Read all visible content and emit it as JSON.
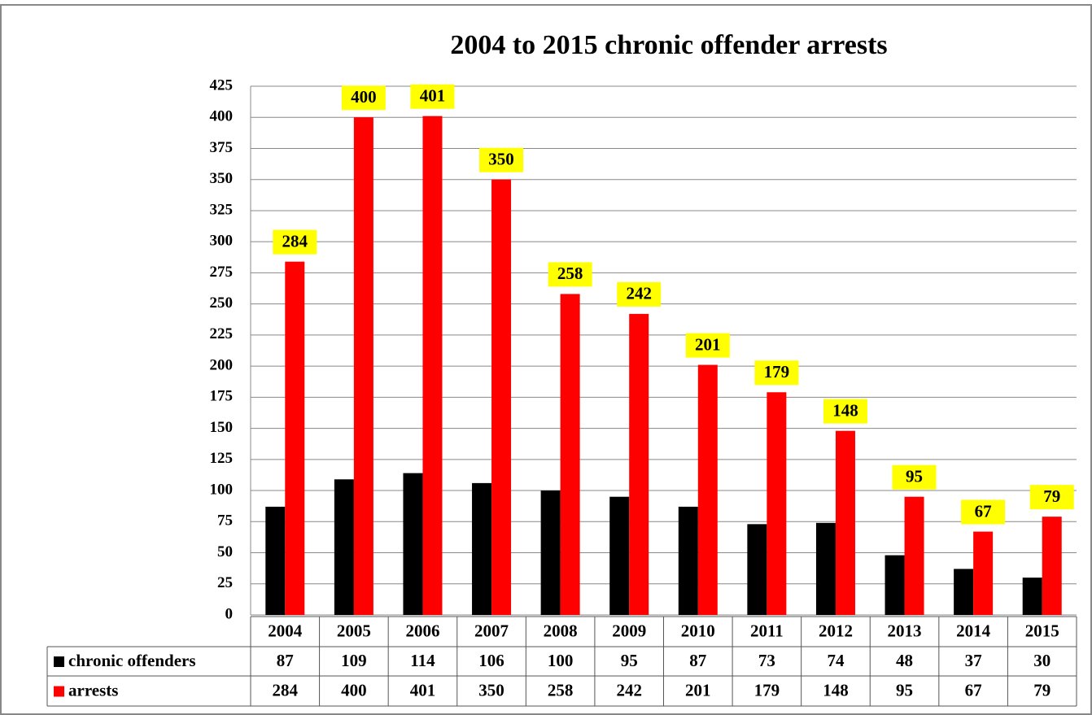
{
  "chart_data": {
    "type": "bar",
    "title": "2004 to 2015 chronic offender arrests",
    "categories": [
      "2004",
      "2005",
      "2006",
      "2007",
      "2008",
      "2009",
      "2010",
      "2011",
      "2012",
      "2013",
      "2014",
      "2015"
    ],
    "series": [
      {
        "name": "chronic offenders",
        "color": "#000000",
        "values": [
          87,
          109,
          114,
          106,
          100,
          95,
          87,
          73,
          74,
          48,
          37,
          30
        ]
      },
      {
        "name": "arrests",
        "color": "#ff0000",
        "values": [
          284,
          400,
          401,
          350,
          258,
          242,
          201,
          179,
          148,
          95,
          67,
          79
        ],
        "label_background": "#ffff00"
      }
    ],
    "ylim": [
      0,
      425
    ],
    "yticks": [
      0,
      25,
      50,
      75,
      100,
      125,
      150,
      175,
      200,
      225,
      250,
      275,
      300,
      325,
      350,
      375,
      400,
      425
    ],
    "grid": true,
    "data_table": true
  }
}
